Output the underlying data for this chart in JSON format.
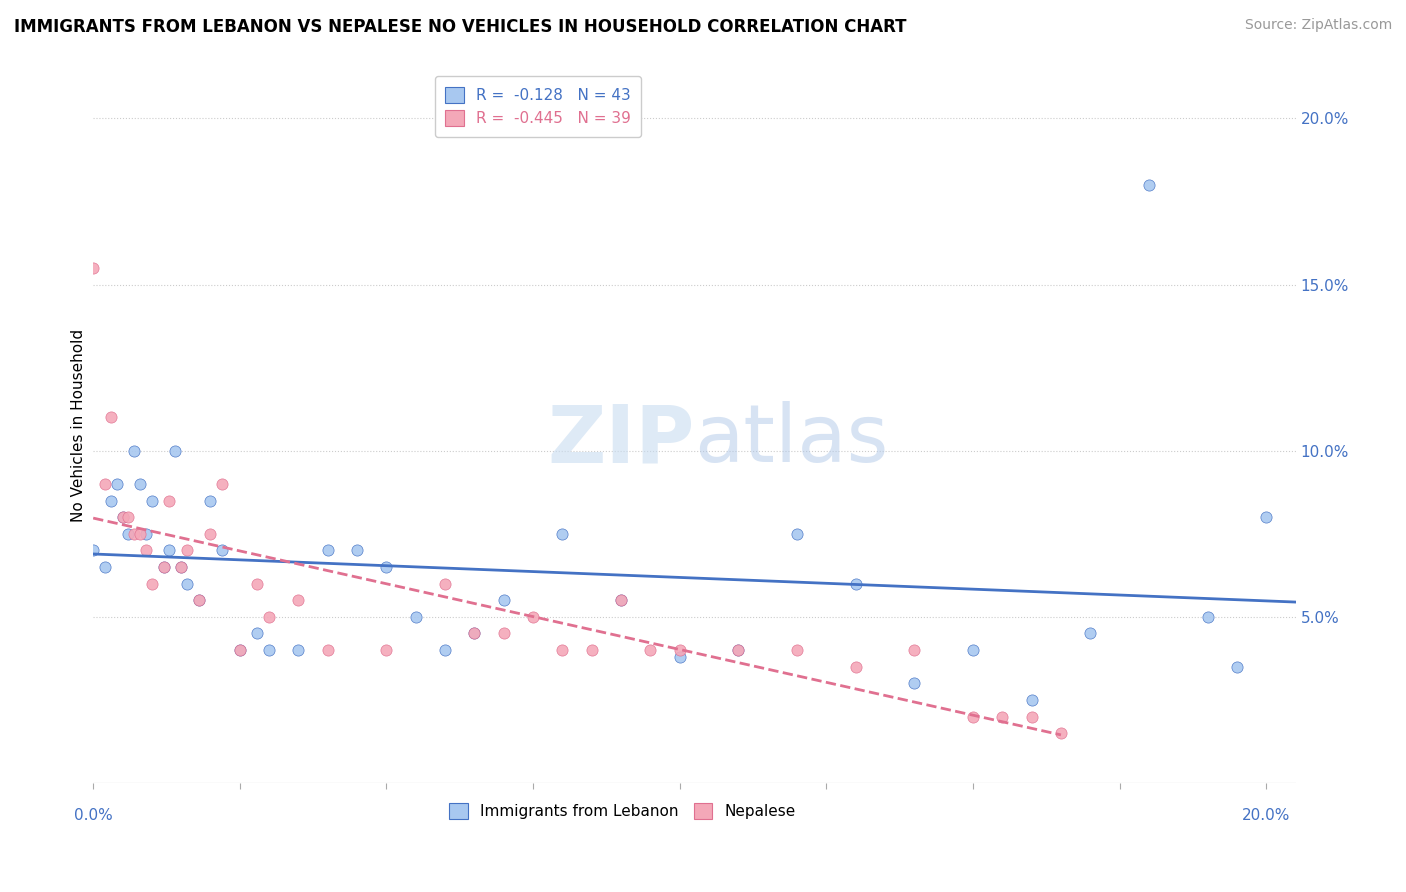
{
  "title": "IMMIGRANTS FROM LEBANON VS NEPALESE NO VEHICLES IN HOUSEHOLD CORRELATION CHART",
  "source": "Source: ZipAtlas.com",
  "ylabel": "No Vehicles in Household",
  "right_yticks": [
    "5.0%",
    "10.0%",
    "15.0%",
    "20.0%"
  ],
  "right_ytick_vals": [
    0.05,
    0.1,
    0.15,
    0.2
  ],
  "legend1_label": "R =  -0.128   N = 43",
  "legend2_label": "R =  -0.445   N = 39",
  "legend_series1": "Immigrants from Lebanon",
  "legend_series2": "Nepalese",
  "color_blue": "#a8c8f0",
  "color_pink": "#f4a8b8",
  "color_blue_dark": "#4472c4",
  "color_pink_dark": "#e07090",
  "color_trend_blue": "#4472c4",
  "color_trend_pink": "#e07090",
  "blue_x": [
    0.0,
    0.002,
    0.003,
    0.004,
    0.005,
    0.006,
    0.007,
    0.008,
    0.009,
    0.01,
    0.012,
    0.013,
    0.014,
    0.015,
    0.016,
    0.018,
    0.02,
    0.022,
    0.025,
    0.028,
    0.03,
    0.035,
    0.04,
    0.045,
    0.05,
    0.055,
    0.06,
    0.065,
    0.07,
    0.08,
    0.09,
    0.1,
    0.11,
    0.12,
    0.13,
    0.14,
    0.15,
    0.16,
    0.17,
    0.18,
    0.19,
    0.195,
    0.2
  ],
  "blue_y": [
    0.07,
    0.065,
    0.085,
    0.09,
    0.08,
    0.075,
    0.1,
    0.09,
    0.075,
    0.085,
    0.065,
    0.07,
    0.1,
    0.065,
    0.06,
    0.055,
    0.085,
    0.07,
    0.04,
    0.045,
    0.04,
    0.04,
    0.07,
    0.07,
    0.065,
    0.05,
    0.04,
    0.045,
    0.055,
    0.075,
    0.055,
    0.038,
    0.04,
    0.075,
    0.06,
    0.03,
    0.04,
    0.025,
    0.045,
    0.18,
    0.05,
    0.035,
    0.08
  ],
  "pink_x": [
    0.0,
    0.002,
    0.003,
    0.005,
    0.006,
    0.007,
    0.008,
    0.009,
    0.01,
    0.012,
    0.013,
    0.015,
    0.016,
    0.018,
    0.02,
    0.022,
    0.025,
    0.028,
    0.03,
    0.035,
    0.04,
    0.05,
    0.06,
    0.065,
    0.07,
    0.075,
    0.08,
    0.085,
    0.09,
    0.095,
    0.1,
    0.11,
    0.12,
    0.13,
    0.14,
    0.15,
    0.155,
    0.16,
    0.165
  ],
  "pink_y": [
    0.155,
    0.09,
    0.11,
    0.08,
    0.08,
    0.075,
    0.075,
    0.07,
    0.06,
    0.065,
    0.085,
    0.065,
    0.07,
    0.055,
    0.075,
    0.09,
    0.04,
    0.06,
    0.05,
    0.055,
    0.04,
    0.04,
    0.06,
    0.045,
    0.045,
    0.05,
    0.04,
    0.04,
    0.055,
    0.04,
    0.04,
    0.04,
    0.04,
    0.035,
    0.04,
    0.02,
    0.02,
    0.02,
    0.015
  ],
  "xlim": [
    0.0,
    0.205
  ],
  "ylim": [
    0.0,
    0.215
  ]
}
